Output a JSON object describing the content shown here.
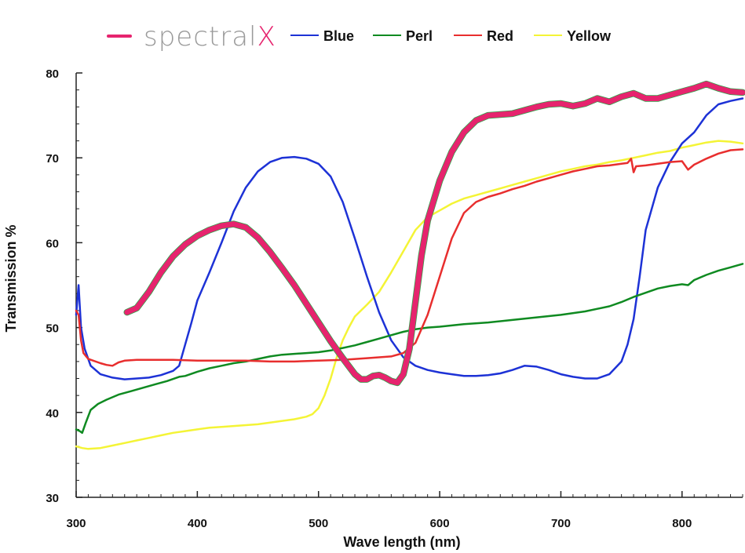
{
  "chart_data": {
    "type": "line",
    "xlabel": "Wave length   (nm)",
    "ylabel": "Transmission  %",
    "xlim": [
      300,
      850
    ],
    "ylim": [
      30,
      80
    ],
    "x_ticks": [
      300,
      400,
      500,
      600,
      700,
      800
    ],
    "y_ticks": [
      30,
      40,
      50,
      60,
      70,
      80
    ],
    "legend_position": "top",
    "grid": false,
    "brand": {
      "prefix": "spectral",
      "suffix": "X"
    },
    "series": [
      {
        "name": "spectralX",
        "color": "#e6246e",
        "width": 7,
        "points": [
          [
            342,
            51.8
          ],
          [
            350,
            52.3
          ],
          [
            360,
            54.2
          ],
          [
            370,
            56.5
          ],
          [
            380,
            58.4
          ],
          [
            390,
            59.8
          ],
          [
            400,
            60.8
          ],
          [
            410,
            61.5
          ],
          [
            420,
            62.0
          ],
          [
            430,
            62.2
          ],
          [
            440,
            61.8
          ],
          [
            450,
            60.6
          ],
          [
            460,
            58.9
          ],
          [
            470,
            57.0
          ],
          [
            480,
            55.0
          ],
          [
            490,
            52.8
          ],
          [
            500,
            50.6
          ],
          [
            510,
            48.4
          ],
          [
            520,
            46.4
          ],
          [
            530,
            44.5
          ],
          [
            535,
            43.9
          ],
          [
            540,
            43.9
          ],
          [
            545,
            44.3
          ],
          [
            550,
            44.4
          ],
          [
            555,
            44.1
          ],
          [
            560,
            43.7
          ],
          [
            565,
            43.5
          ],
          [
            570,
            44.5
          ],
          [
            575,
            47.5
          ],
          [
            580,
            53.0
          ],
          [
            585,
            58.5
          ],
          [
            590,
            62.6
          ],
          [
            600,
            67.3
          ],
          [
            610,
            70.7
          ],
          [
            620,
            73.0
          ],
          [
            630,
            74.4
          ],
          [
            640,
            75.0
          ],
          [
            650,
            75.1
          ],
          [
            660,
            75.2
          ],
          [
            670,
            75.6
          ],
          [
            680,
            76.0
          ],
          [
            690,
            76.3
          ],
          [
            700,
            76.4
          ],
          [
            710,
            76.1
          ],
          [
            720,
            76.4
          ],
          [
            730,
            77.0
          ],
          [
            740,
            76.6
          ],
          [
            750,
            77.2
          ],
          [
            760,
            77.6
          ],
          [
            770,
            77.0
          ],
          [
            780,
            77.0
          ],
          [
            790,
            77.4
          ],
          [
            800,
            77.8
          ],
          [
            810,
            78.2
          ],
          [
            820,
            78.7
          ],
          [
            830,
            78.2
          ],
          [
            840,
            77.8
          ],
          [
            850,
            77.7
          ]
        ]
      },
      {
        "name": "Blue",
        "color": "#1d32d6",
        "width": 2.5,
        "points": [
          [
            300,
            51.5
          ],
          [
            302,
            55.0
          ],
          [
            304,
            50.0
          ],
          [
            307,
            47.5
          ],
          [
            312,
            45.5
          ],
          [
            320,
            44.5
          ],
          [
            330,
            44.1
          ],
          [
            340,
            43.9
          ],
          [
            350,
            44.0
          ],
          [
            360,
            44.1
          ],
          [
            370,
            44.4
          ],
          [
            380,
            44.9
          ],
          [
            385,
            45.5
          ],
          [
            390,
            48.0
          ],
          [
            395,
            50.5
          ],
          [
            400,
            53.2
          ],
          [
            410,
            56.5
          ],
          [
            420,
            60.0
          ],
          [
            430,
            63.7
          ],
          [
            440,
            66.5
          ],
          [
            450,
            68.4
          ],
          [
            460,
            69.5
          ],
          [
            470,
            70.0
          ],
          [
            480,
            70.1
          ],
          [
            490,
            69.9
          ],
          [
            500,
            69.3
          ],
          [
            510,
            67.8
          ],
          [
            520,
            64.8
          ],
          [
            530,
            60.5
          ],
          [
            540,
            56.0
          ],
          [
            550,
            51.8
          ],
          [
            560,
            48.5
          ],
          [
            570,
            46.5
          ],
          [
            580,
            45.5
          ],
          [
            590,
            45.0
          ],
          [
            600,
            44.7
          ],
          [
            610,
            44.5
          ],
          [
            620,
            44.3
          ],
          [
            630,
            44.3
          ],
          [
            640,
            44.4
          ],
          [
            650,
            44.6
          ],
          [
            660,
            45.0
          ],
          [
            670,
            45.5
          ],
          [
            680,
            45.4
          ],
          [
            690,
            45.0
          ],
          [
            700,
            44.5
          ],
          [
            710,
            44.2
          ],
          [
            720,
            44.0
          ],
          [
            730,
            44.0
          ],
          [
            740,
            44.5
          ],
          [
            750,
            46.0
          ],
          [
            755,
            48.0
          ],
          [
            760,
            51.0
          ],
          [
            765,
            56.0
          ],
          [
            770,
            61.5
          ],
          [
            780,
            66.5
          ],
          [
            790,
            69.5
          ],
          [
            800,
            71.7
          ],
          [
            810,
            73.0
          ],
          [
            820,
            75.0
          ],
          [
            830,
            76.3
          ],
          [
            840,
            76.7
          ],
          [
            850,
            77.0
          ]
        ]
      },
      {
        "name": "Perl",
        "color": "#0f8a21",
        "width": 2.5,
        "points": [
          [
            300,
            38.0
          ],
          [
            303,
            37.8
          ],
          [
            305,
            37.6
          ],
          [
            308,
            38.8
          ],
          [
            312,
            40.3
          ],
          [
            318,
            41.0
          ],
          [
            325,
            41.5
          ],
          [
            335,
            42.1
          ],
          [
            345,
            42.5
          ],
          [
            355,
            42.9
          ],
          [
            365,
            43.3
          ],
          [
            375,
            43.7
          ],
          [
            385,
            44.2
          ],
          [
            390,
            44.3
          ],
          [
            400,
            44.8
          ],
          [
            410,
            45.2
          ],
          [
            420,
            45.5
          ],
          [
            430,
            45.8
          ],
          [
            440,
            46.0
          ],
          [
            450,
            46.3
          ],
          [
            460,
            46.6
          ],
          [
            470,
            46.8
          ],
          [
            480,
            46.9
          ],
          [
            490,
            47.0
          ],
          [
            500,
            47.1
          ],
          [
            510,
            47.3
          ],
          [
            520,
            47.6
          ],
          [
            530,
            47.9
          ],
          [
            540,
            48.3
          ],
          [
            550,
            48.7
          ],
          [
            560,
            49.1
          ],
          [
            570,
            49.5
          ],
          [
            580,
            49.8
          ],
          [
            590,
            50.0
          ],
          [
            600,
            50.1
          ],
          [
            620,
            50.4
          ],
          [
            640,
            50.6
          ],
          [
            660,
            50.9
          ],
          [
            680,
            51.2
          ],
          [
            700,
            51.5
          ],
          [
            720,
            51.9
          ],
          [
            740,
            52.5
          ],
          [
            750,
            53.0
          ],
          [
            760,
            53.6
          ],
          [
            770,
            54.1
          ],
          [
            780,
            54.6
          ],
          [
            790,
            54.9
          ],
          [
            800,
            55.1
          ],
          [
            805,
            55.0
          ],
          [
            810,
            55.6
          ],
          [
            820,
            56.2
          ],
          [
            830,
            56.7
          ],
          [
            840,
            57.1
          ],
          [
            850,
            57.5
          ]
        ]
      },
      {
        "name": "Red",
        "color": "#e82e2e",
        "width": 2.5,
        "points": [
          [
            300,
            52.0
          ],
          [
            302,
            51.5
          ],
          [
            304,
            48.5
          ],
          [
            306,
            47.0
          ],
          [
            310,
            46.3
          ],
          [
            320,
            45.8
          ],
          [
            325,
            45.6
          ],
          [
            330,
            45.5
          ],
          [
            335,
            45.9
          ],
          [
            340,
            46.1
          ],
          [
            350,
            46.2
          ],
          [
            360,
            46.2
          ],
          [
            380,
            46.2
          ],
          [
            400,
            46.1
          ],
          [
            420,
            46.1
          ],
          [
            440,
            46.1
          ],
          [
            460,
            46.0
          ],
          [
            480,
            46.0
          ],
          [
            500,
            46.1
          ],
          [
            520,
            46.2
          ],
          [
            540,
            46.4
          ],
          [
            560,
            46.6
          ],
          [
            570,
            47.0
          ],
          [
            580,
            48.2
          ],
          [
            590,
            51.5
          ],
          [
            600,
            56.0
          ],
          [
            610,
            60.5
          ],
          [
            620,
            63.5
          ],
          [
            630,
            64.8
          ],
          [
            640,
            65.4
          ],
          [
            650,
            65.8
          ],
          [
            660,
            66.3
          ],
          [
            670,
            66.7
          ],
          [
            680,
            67.2
          ],
          [
            690,
            67.6
          ],
          [
            700,
            68.0
          ],
          [
            710,
            68.4
          ],
          [
            720,
            68.7
          ],
          [
            730,
            69.0
          ],
          [
            740,
            69.1
          ],
          [
            750,
            69.3
          ],
          [
            755,
            69.4
          ],
          [
            758,
            69.9
          ],
          [
            760,
            68.3
          ],
          [
            762,
            69.0
          ],
          [
            770,
            69.1
          ],
          [
            780,
            69.3
          ],
          [
            790,
            69.5
          ],
          [
            800,
            69.6
          ],
          [
            805,
            68.6
          ],
          [
            810,
            69.2
          ],
          [
            820,
            69.9
          ],
          [
            830,
            70.5
          ],
          [
            840,
            70.9
          ],
          [
            850,
            71.0
          ]
        ]
      },
      {
        "name": "Yellow",
        "color": "#f4f436",
        "width": 2.5,
        "points": [
          [
            300,
            36.0
          ],
          [
            305,
            35.8
          ],
          [
            310,
            35.7
          ],
          [
            320,
            35.8
          ],
          [
            330,
            36.1
          ],
          [
            340,
            36.4
          ],
          [
            350,
            36.7
          ],
          [
            360,
            37.0
          ],
          [
            370,
            37.3
          ],
          [
            380,
            37.6
          ],
          [
            390,
            37.8
          ],
          [
            400,
            38.0
          ],
          [
            410,
            38.2
          ],
          [
            420,
            38.3
          ],
          [
            430,
            38.4
          ],
          [
            440,
            38.5
          ],
          [
            450,
            38.6
          ],
          [
            460,
            38.8
          ],
          [
            470,
            39.0
          ],
          [
            480,
            39.2
          ],
          [
            490,
            39.5
          ],
          [
            495,
            39.8
          ],
          [
            500,
            40.5
          ],
          [
            505,
            42.0
          ],
          [
            510,
            44.0
          ],
          [
            515,
            46.5
          ],
          [
            520,
            48.5
          ],
          [
            525,
            50.0
          ],
          [
            530,
            51.3
          ],
          [
            540,
            52.7
          ],
          [
            550,
            54.2
          ],
          [
            560,
            56.5
          ],
          [
            570,
            59.0
          ],
          [
            580,
            61.5
          ],
          [
            590,
            63.0
          ],
          [
            600,
            63.8
          ],
          [
            610,
            64.6
          ],
          [
            620,
            65.2
          ],
          [
            630,
            65.6
          ],
          [
            640,
            66.0
          ],
          [
            650,
            66.4
          ],
          [
            660,
            66.8
          ],
          [
            670,
            67.2
          ],
          [
            680,
            67.6
          ],
          [
            690,
            68.0
          ],
          [
            700,
            68.4
          ],
          [
            710,
            68.7
          ],
          [
            720,
            69.0
          ],
          [
            730,
            69.2
          ],
          [
            740,
            69.5
          ],
          [
            750,
            69.7
          ],
          [
            760,
            70.0
          ],
          [
            770,
            70.3
          ],
          [
            780,
            70.6
          ],
          [
            790,
            70.8
          ],
          [
            800,
            71.2
          ],
          [
            810,
            71.5
          ],
          [
            820,
            71.8
          ],
          [
            830,
            72.0
          ],
          [
            840,
            71.9
          ],
          [
            850,
            71.7
          ]
        ]
      }
    ]
  }
}
